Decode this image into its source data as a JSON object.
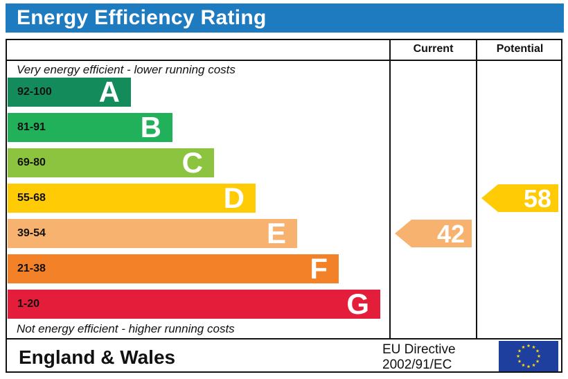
{
  "title": "Energy Efficiency Rating",
  "columns": {
    "current": "Current",
    "potential": "Potential"
  },
  "top_caption": "Very energy efficient - lower running costs",
  "bottom_caption": "Not energy efficient - higher running costs",
  "footer": {
    "region": "England & Wales",
    "directive_line1": "EU Directive",
    "directive_line2": "2002/91/EC"
  },
  "colors": {
    "title_bar": "#1f7bc0",
    "A": "#138b5a",
    "B": "#20b15a",
    "C": "#8cc43f",
    "D": "#ffcb05",
    "E": "#f7b26f",
    "F": "#f38128",
    "G": "#e41d3b",
    "eu_blue": "#1f3f9e",
    "eu_star": "#ffde00"
  },
  "chart_data": {
    "type": "bar",
    "title": "Energy Efficiency Rating",
    "categories": [
      "A",
      "B",
      "C",
      "D",
      "E",
      "F",
      "G"
    ],
    "ranges": [
      "92-100",
      "81-91",
      "69-80",
      "55-68",
      "39-54",
      "21-38",
      "1-20"
    ],
    "current": {
      "value": 42,
      "band": "E"
    },
    "potential": {
      "value": 58,
      "band": "D"
    }
  }
}
